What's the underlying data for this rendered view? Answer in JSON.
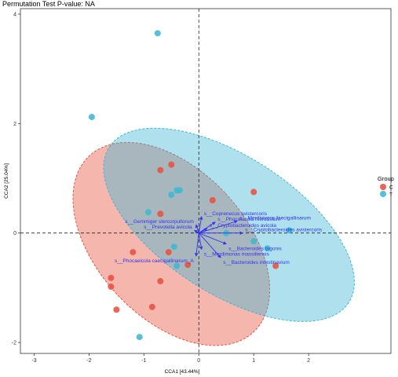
{
  "chart_data": {
    "type": "scatter",
    "title": "Permutation Test P-value: NA",
    "xlabel": "CCA1 [43.44%]",
    "ylabel": "CCA2 [25.04%]",
    "xlim": [
      -3.25,
      3.5
    ],
    "ylim": [
      -2.2,
      4.1
    ],
    "xticks": [
      "-3",
      "-2",
      "-1",
      "0",
      "1",
      "2"
    ],
    "yticks": [
      "-2",
      "0",
      "2",
      "4"
    ],
    "grid": false,
    "reference_lines": {
      "x": 0,
      "y": 0,
      "style": "dashed"
    },
    "legend": {
      "title": "Group",
      "position": "right",
      "entries": [
        {
          "label": "C",
          "color": "#e8513f"
        },
        {
          "label": "T",
          "color": "#3db8d3"
        }
      ]
    },
    "series": [
      {
        "name": "C",
        "color": "#e8513f",
        "points": [
          [
            -1.6,
            -0.82
          ],
          [
            -1.6,
            -0.98
          ],
          [
            -1.5,
            -1.4
          ],
          [
            -0.85,
            -1.35
          ],
          [
            -0.7,
            1.15
          ],
          [
            -0.5,
            1.25
          ],
          [
            -0.7,
            0.35
          ],
          [
            -1.2,
            -0.35
          ],
          [
            -0.55,
            -0.35
          ],
          [
            -0.7,
            -0.88
          ],
          [
            -0.2,
            -0.58
          ],
          [
            0.25,
            0.6
          ],
          [
            1.0,
            0.75
          ],
          [
            1.4,
            -0.6
          ]
        ]
      },
      {
        "name": "T",
        "color": "#3db8d3",
        "points": [
          [
            -0.75,
            3.65
          ],
          [
            -1.95,
            2.12
          ],
          [
            -0.5,
            0.7
          ],
          [
            -0.4,
            0.78
          ],
          [
            -0.35,
            0.78
          ],
          [
            -0.92,
            0.38
          ],
          [
            -0.45,
            -0.25
          ],
          [
            -0.4,
            -0.6
          ],
          [
            -1.08,
            -1.9
          ],
          [
            0.5,
            0.0
          ],
          [
            1.0,
            -0.15
          ],
          [
            1.25,
            -0.28
          ],
          [
            1.65,
            0.05
          ]
        ]
      }
    ],
    "ellipses": [
      {
        "group": "C",
        "color": "#e8513f",
        "center": [
          -0.5,
          -0.2
        ],
        "rx": 1.35,
        "ry": 2.2,
        "rotation_deg": 43
      },
      {
        "group": "T",
        "color": "#3db8d3",
        "center": [
          0.55,
          0.15
        ],
        "rx": 2.6,
        "ry": 1.25,
        "rotation_deg": -33
      }
    ],
    "vectors": [
      {
        "label": "s__Coprenecus avistercoris",
        "x": 0.05,
        "y": 0.3
      },
      {
        "label": "s__Phocaeicola merdavium",
        "x": 0.3,
        "y": 0.2
      },
      {
        "label": "s__Merdivivens faecigallinarum",
        "x": 0.7,
        "y": 0.22
      },
      {
        "label": "s__Gemmiger stercorpullorum",
        "x": -0.05,
        "y": 0.15
      },
      {
        "label": "s__Cryptobacteroides avistercoris",
        "x": 0.8,
        "y": 0.0
      },
      {
        "label": "s__Prevotella avicola",
        "x": -0.08,
        "y": 0.05
      },
      {
        "label": "s__Cryptobacteroides avicola",
        "x": 0.15,
        "y": 0.08
      },
      {
        "label": "s__Merdimonas massiliensis",
        "x": 0.05,
        "y": -0.3
      },
      {
        "label": "s__Bacteroides togonis",
        "x": 0.5,
        "y": -0.2
      },
      {
        "label": "s__Phocaeicola caecigallinarum_A",
        "x": -0.05,
        "y": -0.42
      },
      {
        "label": "s__Bacteroides intestinavium",
        "x": 0.4,
        "y": -0.45
      }
    ],
    "vector_color": "#3333ee"
  }
}
